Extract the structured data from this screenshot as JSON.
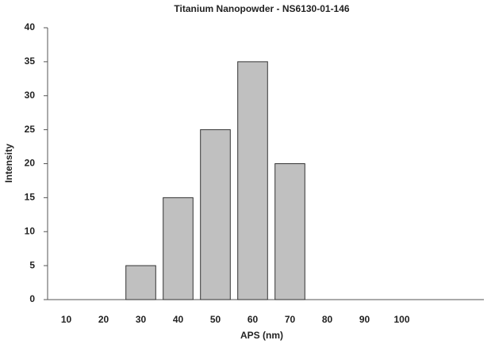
{
  "chart_data": {
    "type": "bar",
    "title": "Titanium Nanopowder - NS6130-01-146",
    "x_label": "APS (nm)",
    "y_label": "Intensity",
    "categories": [
      "10",
      "20",
      "30",
      "40",
      "50",
      "60",
      "70",
      "80",
      "90",
      "100"
    ],
    "values": [
      0,
      0,
      5,
      15,
      25,
      35,
      20,
      0,
      0,
      0
    ],
    "color": "#c0c0c0",
    "ylim": [
      0,
      40
    ],
    "yticks": [
      0,
      5,
      10,
      15,
      20,
      25,
      30,
      35,
      40
    ],
    "grid": false
  }
}
